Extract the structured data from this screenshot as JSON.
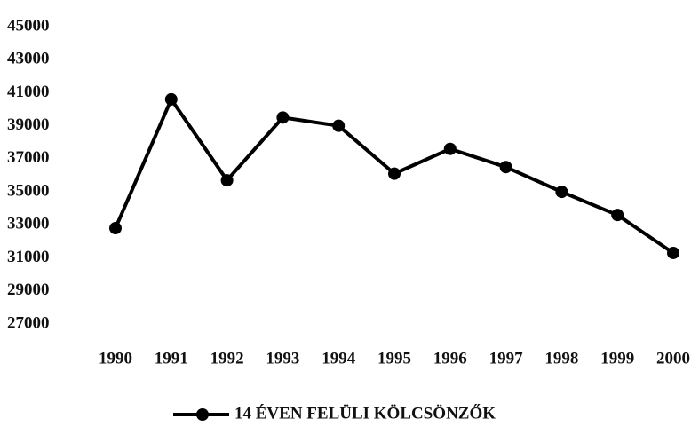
{
  "chart_data": {
    "type": "line",
    "categories": [
      "1990",
      "1991",
      "1992",
      "1993",
      "1994",
      "1995",
      "1996",
      "1997",
      "1998",
      "1999",
      "2000"
    ],
    "series": [
      {
        "name": "14 ÉVEN FELÜLI KÖLCSÖNZŐK",
        "color": "#000000",
        "values": [
          32800,
          40600,
          35700,
          39500,
          39000,
          36100,
          37600,
          36500,
          35000,
          33600,
          31300
        ]
      }
    ],
    "ylim": [
      27000,
      45000
    ],
    "yticks": [
      27000,
      29000,
      31000,
      33000,
      35000,
      37000,
      39000,
      41000,
      43000,
      45000
    ],
    "grid": false,
    "legend": "bottom"
  }
}
